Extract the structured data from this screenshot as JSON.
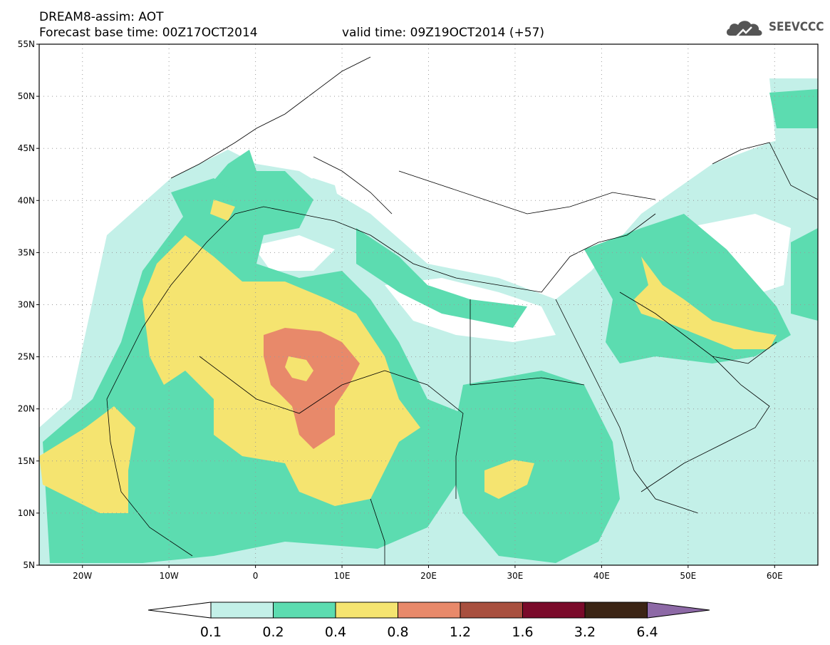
{
  "header": {
    "title": "DREAM8-assim: AOT",
    "forecast": "Forecast base time: 00Z17OCT2014",
    "valid": "valid time: 09Z19OCT2014 (+57)"
  },
  "logo": {
    "text": "SEEVCCC",
    "icon": "cloud-icon"
  },
  "map": {
    "lat_labels": [
      "55N",
      "50N",
      "45N",
      "40N",
      "35N",
      "30N",
      "25N",
      "20N",
      "15N",
      "10N",
      "5N"
    ],
    "lon_labels": [
      "20W",
      "10W",
      "0",
      "10E",
      "20E",
      "30E",
      "40E",
      "50E",
      "60E"
    ],
    "lon_range": [
      -25,
      65
    ],
    "lat_range": [
      5,
      55
    ],
    "grid": "dotted"
  },
  "colorbar": {
    "labels": [
      "0.1",
      "0.2",
      "0.4",
      "0.8",
      "1.2",
      "1.6",
      "3.2",
      "6.4"
    ],
    "colors": [
      "#ffffff",
      "#c3f0e8",
      "#5cdcb0",
      "#f5e470",
      "#e8896a",
      "#a84f3e",
      "#7a0a2a",
      "#3b2414",
      "#8d69a6"
    ]
  }
}
